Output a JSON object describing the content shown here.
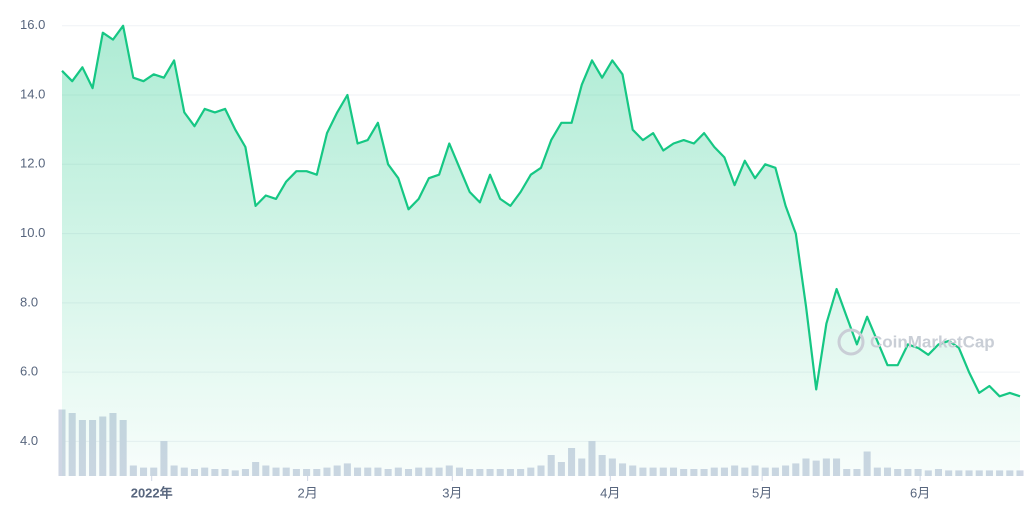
{
  "chart_data": {
    "type": "line",
    "watermark": "CoinMarketCap",
    "xlim": [
      0,
      94
    ],
    "xticks": [
      {
        "value": 8.8,
        "label": "2022年"
      },
      {
        "value": 24.1,
        "label": "2月"
      },
      {
        "value": 38.3,
        "label": "3月"
      },
      {
        "value": 53.8,
        "label": "4月"
      },
      {
        "value": 68.7,
        "label": "5月"
      },
      {
        "value": 84.2,
        "label": "6月"
      }
    ],
    "ylim": [
      3.0,
      16.6
    ],
    "yticks": [
      {
        "value": 4,
        "label": "4.0"
      },
      {
        "value": 6,
        "label": "6.0"
      },
      {
        "value": 8,
        "label": "8.0"
      },
      {
        "value": 10,
        "label": "10.0"
      },
      {
        "value": 12,
        "label": "12.0"
      },
      {
        "value": 14,
        "label": "14.0"
      },
      {
        "value": 16,
        "label": "16.0"
      }
    ],
    "y2lim": [
      0,
      100
    ],
    "grid": true,
    "series": [
      {
        "name": "price",
        "color": "#16c784",
        "values": [
          14.7,
          14.4,
          14.8,
          14.2,
          15.8,
          15.6,
          16.0,
          14.5,
          14.4,
          14.6,
          14.5,
          15.0,
          13.5,
          13.1,
          13.6,
          13.5,
          13.6,
          13.0,
          12.5,
          10.8,
          11.1,
          11.0,
          11.5,
          11.8,
          11.8,
          11.7,
          12.9,
          13.5,
          14.0,
          12.6,
          12.7,
          13.2,
          12.0,
          11.6,
          10.7,
          11.0,
          11.6,
          11.7,
          12.6,
          11.9,
          11.2,
          10.9,
          11.7,
          11.0,
          10.8,
          11.2,
          11.7,
          11.9,
          12.7,
          13.2,
          13.2,
          14.3,
          15.0,
          14.5,
          15.0,
          14.6,
          13.0,
          12.7,
          12.9,
          12.4,
          12.6,
          12.7,
          12.6,
          12.9,
          12.5,
          12.2,
          11.4,
          12.1,
          11.6,
          12.0,
          11.9,
          10.8,
          10.0,
          7.9,
          5.5,
          7.4,
          8.4,
          7.6,
          6.8,
          7.6,
          6.9,
          6.2,
          6.2,
          6.8,
          6.7,
          6.5,
          6.8,
          6.9,
          6.7,
          6.0,
          5.4,
          5.6,
          5.3,
          5.4,
          5.3
        ]
      },
      {
        "name": "volume",
        "axis": "y2",
        "color": "#cfd6e4",
        "values": [
          95,
          90,
          80,
          80,
          85,
          90,
          80,
          15,
          12,
          12,
          50,
          15,
          12,
          10,
          12,
          10,
          10,
          8,
          10,
          20,
          15,
          12,
          12,
          10,
          10,
          10,
          12,
          15,
          18,
          12,
          12,
          12,
          10,
          12,
          10,
          12,
          12,
          12,
          15,
          12,
          10,
          10,
          10,
          10,
          10,
          10,
          12,
          15,
          30,
          20,
          40,
          25,
          50,
          30,
          25,
          18,
          15,
          12,
          12,
          12,
          12,
          10,
          10,
          10,
          12,
          12,
          15,
          12,
          15,
          12,
          12,
          15,
          18,
          25,
          22,
          25,
          25,
          10,
          10,
          35,
          12,
          12,
          10,
          10,
          10,
          8,
          10,
          8,
          8,
          8,
          8,
          8,
          8,
          8,
          8
        ]
      }
    ]
  }
}
